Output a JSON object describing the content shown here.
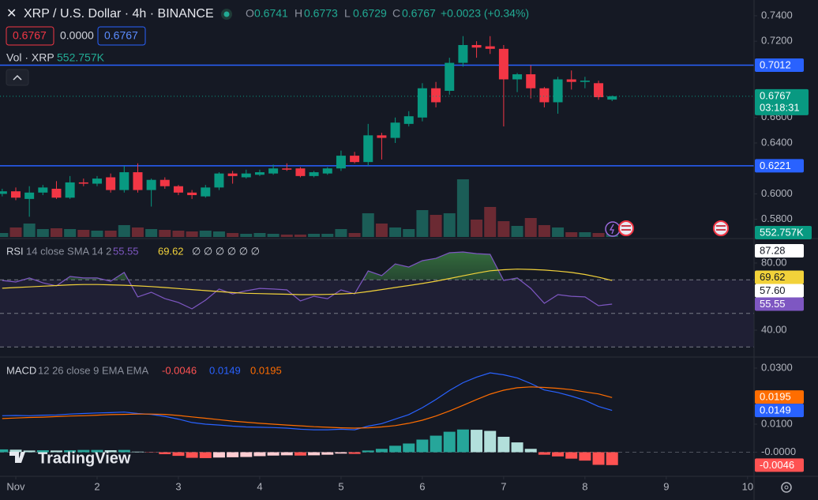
{
  "header": {
    "symbol": "XRP / U.S. Dollar · 4h · BINANCE",
    "o": "O",
    "h": "H",
    "l": "L",
    "c": "C",
    "change": "+0.0023 (+0.34%)",
    "spread": "0.0000",
    "volume_title": "Vol · XRP"
  },
  "watermark": "TradingView",
  "chart_data": [
    {
      "type": "candlestick",
      "x": [
        -4,
        0,
        4,
        8,
        12,
        16,
        20,
        24,
        28,
        32,
        36,
        40,
        44,
        48,
        52,
        56,
        60,
        64,
        68,
        72,
        76,
        80,
        84,
        88,
        92,
        96,
        100,
        104,
        108,
        112,
        116,
        120,
        124,
        128,
        132,
        136,
        140,
        144,
        148,
        152,
        156,
        160,
        164,
        168,
        172,
        176
      ],
      "open": [
        0.6,
        0.602,
        0.596,
        0.601,
        0.604,
        0.597,
        0.609,
        0.608,
        0.613,
        0.603,
        0.617,
        0.603,
        0.611,
        0.606,
        0.601,
        0.598,
        0.605,
        0.616,
        0.613,
        0.615,
        0.616,
        0.62,
        0.62,
        0.614,
        0.616,
        0.62,
        0.63,
        0.625,
        0.646,
        0.644,
        0.655,
        0.66,
        0.683,
        0.681,
        0.703,
        0.717,
        0.716,
        0.714,
        0.69,
        0.694,
        0.683,
        0.672,
        0.69,
        0.688,
        0.687,
        0.6741
      ],
      "high": [
        0.604,
        0.605,
        0.606,
        0.607,
        0.61,
        0.614,
        0.612,
        0.614,
        0.616,
        0.622,
        0.624,
        0.612,
        0.613,
        0.607,
        0.603,
        0.607,
        0.617,
        0.618,
        0.619,
        0.619,
        0.623,
        0.624,
        0.621,
        0.618,
        0.621,
        0.634,
        0.633,
        0.655,
        0.648,
        0.66,
        0.665,
        0.687,
        0.688,
        0.707,
        0.724,
        0.72,
        0.724,
        0.717,
        0.695,
        0.701,
        0.684,
        0.692,
        0.697,
        0.692,
        0.689,
        0.6773
      ],
      "low": [
        0.598,
        0.595,
        0.582,
        0.599,
        0.596,
        0.596,
        0.606,
        0.606,
        0.601,
        0.601,
        0.601,
        0.59,
        0.604,
        0.599,
        0.596,
        0.597,
        0.603,
        0.608,
        0.612,
        0.614,
        0.615,
        0.618,
        0.613,
        0.613,
        0.615,
        0.618,
        0.624,
        0.622,
        0.627,
        0.64,
        0.653,
        0.657,
        0.668,
        0.678,
        0.7,
        0.707,
        0.71,
        0.653,
        0.68,
        0.675,
        0.668,
        0.663,
        0.682,
        0.683,
        0.674,
        0.6729
      ],
      "close": [
        0.602,
        0.597,
        0.601,
        0.605,
        0.597,
        0.609,
        0.608,
        0.612,
        0.603,
        0.617,
        0.603,
        0.611,
        0.606,
        0.601,
        0.599,
        0.605,
        0.616,
        0.614,
        0.616,
        0.617,
        0.62,
        0.619,
        0.614,
        0.617,
        0.62,
        0.63,
        0.625,
        0.646,
        0.644,
        0.656,
        0.661,
        0.683,
        0.672,
        0.703,
        0.717,
        0.715,
        0.714,
        0.69,
        0.694,
        0.683,
        0.672,
        0.69,
        0.688,
        0.689,
        0.676,
        0.6767
      ],
      "up_color": "#089981",
      "down_color": "#f23645",
      "xlim": [
        -4.66,
        217.9
      ],
      "ylim": [
        0.5661,
        0.7524
      ],
      "yticks": [
        {
          "value": 0.58,
          "label": "0.5800"
        },
        {
          "value": 0.6,
          "label": "0.6000"
        },
        {
          "value": 0.64,
          "label": "0.6400"
        },
        {
          "value": 0.66,
          "label": "0.6600"
        },
        {
          "value": 0.72,
          "label": "0.7200"
        },
        {
          "value": 0.74,
          "label": "0.7400"
        }
      ],
      "hlines": [
        {
          "value": 0.7012,
          "label": "0.7012"
        },
        {
          "value": 0.6221,
          "label": "0.6221"
        }
      ],
      "hline_color": "#2962ff",
      "countdown": "03:18:31",
      "volume": {
        "values": [
          665000,
          1596000,
          2261000,
          1330000,
          1463000,
          1330000,
          1197000,
          1064000,
          1064000,
          1995000,
          1596000,
          1330000,
          1197000,
          1064000,
          931000,
          1064000,
          931000,
          665000,
          532000,
          665000,
          532000,
          399000,
          399000,
          532000,
          532000,
          1330000,
          665000,
          3990000,
          2261000,
          1596000,
          1330000,
          4522000,
          3724000,
          3990000,
          9709000,
          2926000,
          5054000,
          2660000,
          1862000,
          3192000,
          1995000,
          1596000,
          798000,
          798000,
          665000,
          552757
        ],
        "last_label": "552.757K",
        "ylim": [
          0,
          39900000
        ],
        "up_color": "#1b5d57",
        "down_color": "#6b2a33"
      }
    },
    {
      "type": "line",
      "title": "RSI",
      "subtitle": "14 close SMA 14 2",
      "legend_extra": "∅ ∅ ∅ ∅ ∅ ∅",
      "x": [
        -4,
        0,
        4,
        8,
        12,
        16,
        20,
        24,
        28,
        32,
        36,
        40,
        44,
        48,
        52,
        56,
        60,
        64,
        68,
        72,
        76,
        80,
        84,
        88,
        92,
        96,
        100,
        104,
        108,
        112,
        116,
        120,
        124,
        128,
        132,
        136,
        140,
        144,
        148,
        152,
        156,
        160,
        164,
        168,
        172,
        176
      ],
      "series": [
        {
          "color": "#7e57c2",
          "values": [
            69.6,
            68.7,
            71.1,
            68.2,
            66.4,
            72.0,
            71.1,
            71.1,
            69.2,
            74.4,
            59.8,
            62.6,
            58.8,
            56.5,
            52.7,
            57.9,
            64.5,
            61.6,
            63.5,
            64.9,
            64.5,
            64.0,
            57.4,
            60.2,
            58.8,
            64.0,
            61.6,
            75.3,
            72.5,
            79.5,
            77.6,
            81.4,
            82.8,
            86.1,
            86.6,
            85.6,
            85.2,
            69.6,
            71.1,
            64.9,
            56.0,
            61.2,
            60.2,
            59.8,
            54.6,
            55.55
          ]
        },
        {
          "color": "#f2d23a",
          "values": [
            65.0,
            65.4,
            65.8,
            66.2,
            66.6,
            67.0,
            67.2,
            67.2,
            67.0,
            66.8,
            66.4,
            66.0,
            65.4,
            64.8,
            64.2,
            63.6,
            63.0,
            62.4,
            62.0,
            61.8,
            61.6,
            61.4,
            61.2,
            61.2,
            61.3,
            61.6,
            62.0,
            63.0,
            64.2,
            65.4,
            66.6,
            67.8,
            69.2,
            70.8,
            72.4,
            74.0,
            75.4,
            76.0,
            76.4,
            76.2,
            75.8,
            75.2,
            74.4,
            73.2,
            71.6,
            69.62
          ]
        }
      ],
      "bands": [
        70,
        50,
        30
      ],
      "band_color": "#7e57c2",
      "overbought_fill": "#4caf50",
      "xlim": [
        -4.66,
        217.9
      ],
      "ylim": [
        24.94,
        94.12
      ],
      "yticks": [
        {
          "value": 40,
          "label": "40.00"
        },
        {
          "value": 80,
          "label": "80.00"
        }
      ],
      "badges": [
        {
          "value": 87.28,
          "label": "87.28"
        },
        {
          "value": 57.6,
          "label": "57.60"
        }
      ],
      "badge_color": "#ffffff"
    },
    {
      "type": "line",
      "title": "MACD",
      "subtitle": "12 26 close 9 EMA EMA",
      "x": [
        -4,
        0,
        4,
        8,
        12,
        16,
        20,
        24,
        28,
        32,
        36,
        40,
        44,
        48,
        52,
        56,
        60,
        64,
        68,
        72,
        76,
        80,
        84,
        88,
        92,
        96,
        100,
        104,
        108,
        112,
        116,
        120,
        124,
        128,
        132,
        136,
        140,
        144,
        148,
        152,
        156,
        160,
        164,
        168,
        172,
        176
      ],
      "series": [
        {
          "color": "#2962ff",
          "values": [
            0.013,
            0.0131,
            0.013,
            0.0132,
            0.0133,
            0.0136,
            0.0138,
            0.014,
            0.0141,
            0.0143,
            0.0138,
            0.0135,
            0.0128,
            0.0118,
            0.0106,
            0.01,
            0.0097,
            0.0093,
            0.009,
            0.0089,
            0.0088,
            0.0086,
            0.0082,
            0.008,
            0.008,
            0.0082,
            0.008,
            0.0093,
            0.0102,
            0.0118,
            0.0134,
            0.0159,
            0.0188,
            0.022,
            0.0248,
            0.0268,
            0.0283,
            0.0276,
            0.0265,
            0.0245,
            0.0222,
            0.0213,
            0.02,
            0.0185,
            0.0163,
            0.0149
          ]
        },
        {
          "color": "#ff6d00",
          "values": [
            0.012,
            0.0122,
            0.0124,
            0.0125,
            0.0127,
            0.0129,
            0.013,
            0.0132,
            0.0134,
            0.0135,
            0.0136,
            0.0136,
            0.0135,
            0.0131,
            0.0126,
            0.0121,
            0.0116,
            0.0111,
            0.0107,
            0.0103,
            0.01,
            0.0097,
            0.0094,
            0.0091,
            0.0089,
            0.0087,
            0.0086,
            0.0087,
            0.009,
            0.0095,
            0.0103,
            0.0114,
            0.0129,
            0.0147,
            0.0167,
            0.0188,
            0.0207,
            0.0221,
            0.023,
            0.0233,
            0.0231,
            0.0228,
            0.0223,
            0.0215,
            0.0208,
            0.0195
          ]
        }
      ],
      "histogram": {
        "values": [
          0.001,
          0.0009,
          0.0006,
          0.0007,
          0.0006,
          0.0007,
          0.0008,
          0.0008,
          0.0007,
          0.0008,
          0.0002,
          -0.0001,
          -0.0007,
          -0.0013,
          -0.002,
          -0.0021,
          -0.0019,
          -0.0018,
          -0.0017,
          -0.0014,
          -0.0012,
          -0.0011,
          -0.0012,
          -0.0011,
          -0.0009,
          -0.0005,
          -0.0006,
          0.0006,
          0.0012,
          0.0023,
          0.0031,
          0.0045,
          0.0059,
          0.0073,
          0.0081,
          0.008,
          0.0076,
          0.0055,
          0.0035,
          0.0012,
          -0.0009,
          -0.0015,
          -0.0023,
          -0.003,
          -0.0045,
          -0.0046
        ],
        "colors": {
          "rising_above": "#26a69a",
          "falling_above": "#b2dfdb",
          "rising_below": "#ffcdd2",
          "falling_below": "#ff5252"
        }
      },
      "hlines": [
        0
      ],
      "xlim": [
        -4.66,
        217.9
      ],
      "ylim": [
        -0.00775,
        0.0331
      ],
      "yticks": [
        {
          "value": 0.03,
          "label": "0.0300"
        },
        {
          "value": 0.01,
          "label": "0.0100"
        },
        {
          "value": 0,
          "label": "-0.0000"
        }
      ],
      "xticks": [
        {
          "value": 0,
          "label": "Nov"
        },
        {
          "value": 24,
          "label": "2"
        },
        {
          "value": 48,
          "label": "3"
        },
        {
          "value": 72,
          "label": "4"
        },
        {
          "value": 96,
          "label": "5"
        },
        {
          "value": 120,
          "label": "6"
        },
        {
          "value": 144,
          "label": "7"
        },
        {
          "value": 168,
          "label": "8"
        },
        {
          "value": 192,
          "label": "9"
        },
        {
          "value": 216,
          "label": "10"
        }
      ]
    }
  ]
}
